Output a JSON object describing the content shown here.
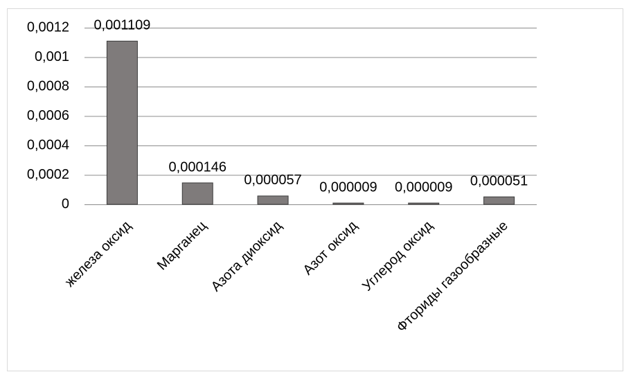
{
  "chart_data": {
    "type": "bar",
    "categories": [
      "железа оксид",
      "Марганец",
      "Азота диоксид",
      "Азот оксид",
      "Углерод оксид",
      "Фториды газообразные"
    ],
    "values": [
      0.001109,
      0.000146,
      5.7e-05,
      9e-06,
      9e-06,
      5.1e-05
    ],
    "value_labels": [
      "0,001109",
      "0,000146",
      "0,000057",
      "0,000009",
      "0,000009",
      "0,000051"
    ],
    "color": "#7f7b7b",
    "ylim": [
      0,
      0.0012
    ],
    "yticks": [
      0,
      {
        "value": 0.0002,
        "label": "0,0002"
      },
      {
        "value": 0.0004,
        "label": "0,0004"
      },
      {
        "value": 0.0006,
        "label": "0,0006"
      },
      {
        "value": 0.0008,
        "label": "0,0008"
      },
      {
        "value": 0.001,
        "label": "0,001"
      },
      {
        "value": 0.0012,
        "label": "0,0012"
      }
    ],
    "grid": true
  }
}
